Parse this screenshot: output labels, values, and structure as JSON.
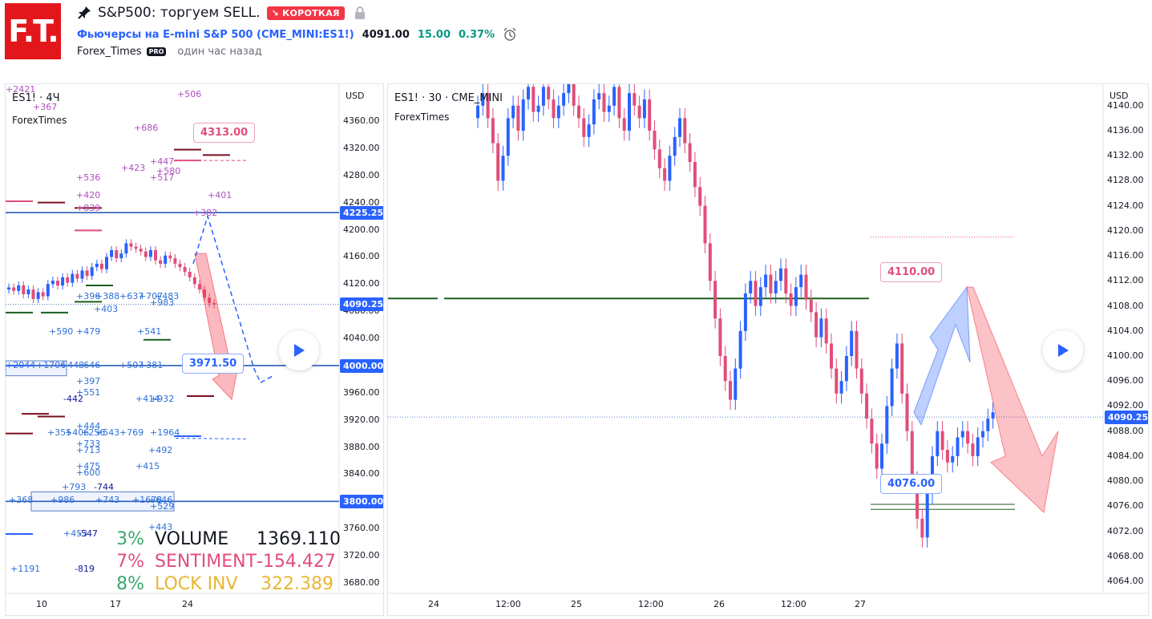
{
  "header": {
    "logo_text": "F.T.",
    "title": "S&P500: торгуем SELL.",
    "badge": "↘ КОРОТКАЯ",
    "symbol_name": "Фьючерсы на E-mini S&P 500",
    "symbol_code": "(CME_MINI:ES1!)",
    "price": "4091.00",
    "change": "15.00",
    "change_pct": "0.37%",
    "author": "Forex_Times",
    "pro_badge": "PRO",
    "published": "один час назад"
  },
  "left_panel": {
    "title": "ES1! · 4Ч",
    "watermark": "ForexTimes",
    "currency": "USD",
    "y_ticks": [
      "4360.00",
      "4320.00",
      "4280.00",
      "4240.00",
      "4200.00",
      "4160.00",
      "4120.00",
      "4080.00",
      "4040.00",
      "4000.00",
      "3960.00",
      "3920.00",
      "3880.00",
      "3840.00",
      "3800.00",
      "3760.00",
      "3720.00",
      "3680.00"
    ],
    "x_ticks": [
      "10",
      "17",
      "24"
    ],
    "price_tags": [
      {
        "label": "4225.25",
        "color": "#2962ff"
      },
      {
        "label": "4090.25",
        "color": "#2962ff"
      },
      {
        "label": "4000.00",
        "color": "#2962ff"
      },
      {
        "label": "3800.00",
        "color": "#2962ff"
      }
    ],
    "notes": [
      {
        "label": "4313.00",
        "color": "#e04e7a"
      },
      {
        "label": "3971.50",
        "color": "#2962ff"
      }
    ],
    "volume_labels": [
      "+367",
      "+506",
      "+686",
      "+447",
      "+580",
      "+517",
      "+423",
      "+536",
      "+401",
      "+420",
      "+839",
      "+382",
      "+396",
      "+388",
      "+637",
      "+707",
      "+483",
      "+983",
      "+403",
      "+590",
      "+479",
      "+541",
      "+2044",
      "+1706",
      "+443",
      "+646",
      "+507",
      "+381",
      "+397",
      "+551",
      "-442",
      "+414",
      "+932",
      "+444",
      "+355",
      "+406",
      "+256",
      "+543",
      "+769",
      "+1964",
      "+733",
      "+713",
      "+492",
      "+475",
      "+600",
      "+415",
      "+793",
      "-744",
      "+368",
      "+986",
      "+743",
      "+1678",
      "+646",
      "+529",
      "+443",
      "+453",
      "-547",
      "+1191",
      "-819",
      "+2421"
    ],
    "stats": [
      {
        "pct": "3%",
        "name": "VOLUME",
        "value": "1369.110",
        "color": "#3aa76d",
        "name_color": "#131722"
      },
      {
        "pct": "7%",
        "name": "SENTIMENT",
        "value": "-154.427",
        "color": "#e04e7a",
        "name_color": "#e04e7a"
      },
      {
        "pct": "8%",
        "name": "LOCK INV",
        "value": "322.389",
        "color": "#3aa76d",
        "name_color": "#e8b633"
      }
    ]
  },
  "right_panel": {
    "title": "ES1! · 30 · CME_MINI",
    "watermark": "ForexTimes",
    "currency": "USD",
    "y_ticks": [
      "4140.00",
      "4136.00",
      "4132.00",
      "4128.00",
      "4124.00",
      "4120.00",
      "4116.00",
      "4112.00",
      "4108.00",
      "4104.00",
      "4100.00",
      "4096.00",
      "4092.00",
      "4088.00",
      "4084.00",
      "4080.00",
      "4076.00",
      "4072.00",
      "4068.00",
      "4064.00"
    ],
    "x_ticks": [
      "24",
      "12:00",
      "25",
      "12:00",
      "26",
      "12:00",
      "27"
    ],
    "price_tags": [
      {
        "label": "4090.25",
        "color": "#2962ff"
      }
    ],
    "notes": [
      {
        "label": "4110.00",
        "color": "#e04e7a"
      },
      {
        "label": "4076.00",
        "color": "#2962ff"
      }
    ]
  },
  "colors": {
    "up": "#2962ff",
    "down": "#e04e7a",
    "accent": "#2962ff",
    "green_line": "#1b5e20"
  },
  "icons": [
    "pin-icon",
    "lock-icon",
    "alarm-clock-icon",
    "play-icon"
  ]
}
